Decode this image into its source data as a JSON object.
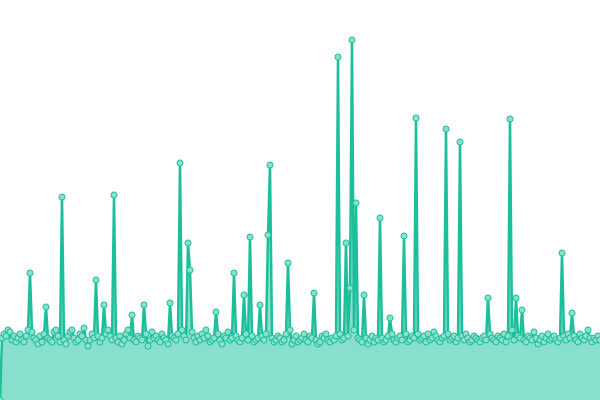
{
  "chart_data": {
    "type": "area",
    "title": "",
    "xlabel": "",
    "ylabel": "",
    "grid": false,
    "legend": "none",
    "ylim": [
      0,
      360
    ],
    "colors": {
      "line": "#1dbf9b",
      "fill": "#87dfcc",
      "point_fill": "#8ae0cc",
      "point_stroke": "#1dbf9b"
    },
    "series": [
      {
        "values": [
          0,
          62,
          66,
          64,
          70,
          68,
          60,
          64,
          58,
          62,
          66,
          60,
          58,
          64,
          70,
          127,
          68,
          62,
          60,
          56,
          64,
          58,
          66,
          93,
          62,
          60,
          58,
          68,
          70,
          64,
          58,
          203,
          60,
          56,
          64,
          68,
          70,
          62,
          58,
          60,
          66,
          64,
          72,
          60,
          54,
          60,
          66,
          62,
          120,
          64,
          58,
          62,
          95,
          66,
          70,
          64,
          60,
          205,
          62,
          58,
          64,
          56,
          60,
          66,
          70,
          62,
          85,
          60,
          58,
          64,
          62,
          60,
          95,
          66,
          54,
          60,
          68,
          62,
          64,
          60,
          58,
          66,
          62,
          60,
          56,
          97,
          64,
          62,
          60,
          66,
          237,
          70,
          64,
          60,
          157,
          130,
          68,
          62,
          58,
          64,
          60,
          66,
          62,
          70,
          64,
          58,
          60,
          62,
          88,
          66,
          60,
          56,
          64,
          62,
          68,
          60,
          62,
          127,
          64,
          60,
          58,
          62,
          105,
          66,
          60,
          163,
          64,
          58,
          60,
          62,
          95,
          64,
          60,
          66,
          165,
          235,
          62,
          58,
          60,
          64,
          62,
          58,
          60,
          66,
          137,
          70,
          56,
          60,
          64,
          58,
          60,
          62,
          66,
          60,
          58,
          64,
          62,
          107,
          60,
          56,
          58,
          64,
          62,
          66,
          60,
          58,
          62,
          60,
          64,
          343,
          66,
          60,
          62,
          157,
          64,
          112,
          360,
          70,
          197,
          62,
          60,
          58,
          105,
          62,
          56,
          60,
          64,
          58,
          62,
          60,
          182,
          62,
          58,
          60,
          64,
          82,
          66,
          60,
          58,
          62,
          64,
          60,
          164,
          66,
          58,
          60,
          64,
          62,
          282,
          66,
          60,
          62,
          64,
          58,
          66,
          60,
          62,
          68,
          64,
          60,
          58,
          62,
          64,
          271,
          66,
          60,
          62,
          64,
          58,
          62,
          258,
          64,
          60,
          66,
          62,
          58,
          60,
          64,
          62,
          60,
          58,
          62,
          64,
          60,
          102,
          66,
          62,
          60,
          58,
          64,
          62,
          60,
          66,
          58,
          64,
          281,
          70,
          60,
          102,
          64,
          62,
          90,
          60,
          58,
          64,
          62,
          60,
          68,
          62,
          56,
          60,
          64,
          58,
          62,
          66,
          60,
          62,
          64,
          60,
          58,
          62,
          147,
          64,
          60,
          66,
          62,
          87,
          64,
          60,
          58,
          66,
          62,
          60,
          64,
          70,
          62,
          58,
          62,
          60,
          64,
          60
        ]
      }
    ]
  }
}
